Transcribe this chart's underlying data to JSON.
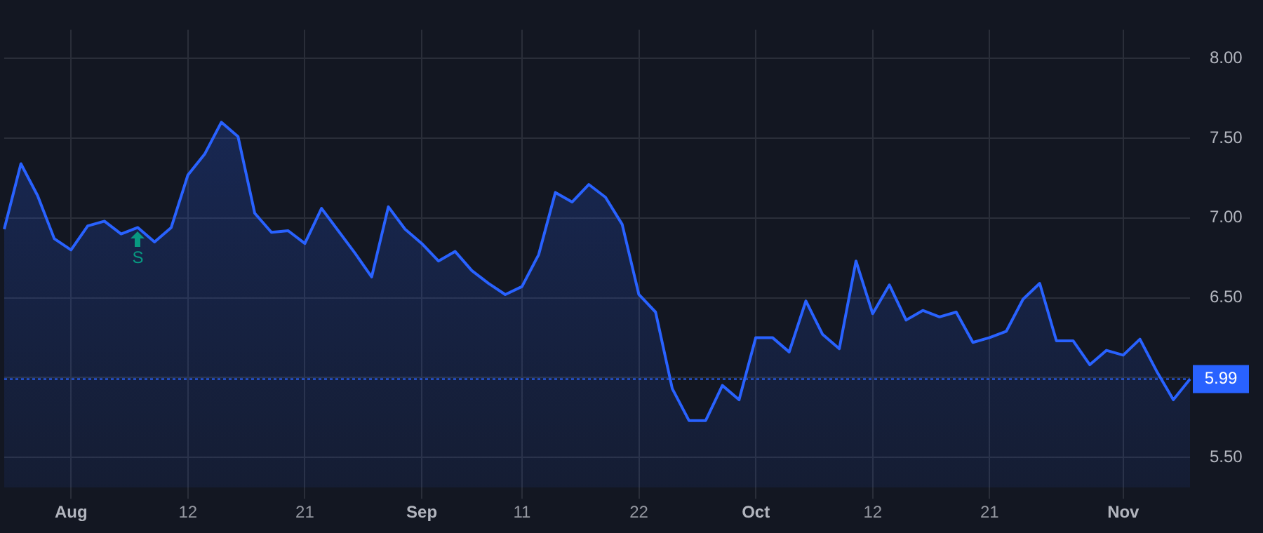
{
  "chart_data": {
    "type": "area",
    "categories": [
      null,
      null,
      null,
      null,
      "Aug",
      null,
      null,
      null,
      null,
      null,
      null,
      "12",
      null,
      null,
      null,
      null,
      null,
      null,
      "21",
      null,
      null,
      null,
      null,
      null,
      null,
      "Sep",
      null,
      null,
      null,
      null,
      null,
      "11",
      null,
      null,
      null,
      null,
      null,
      null,
      "22",
      null,
      null,
      null,
      null,
      null,
      null,
      "Oct",
      null,
      null,
      null,
      null,
      null,
      null,
      "12",
      null,
      null,
      null,
      null,
      null,
      null,
      "21",
      null,
      null,
      null,
      null,
      null,
      null,
      null,
      "Nov",
      null,
      null,
      null,
      null
    ],
    "series": [
      {
        "color": "#2962ff",
        "values": [
          6.93,
          7.34,
          7.14,
          6.87,
          6.8,
          6.95,
          6.98,
          6.9,
          6.94,
          6.85,
          6.94,
          7.27,
          7.4,
          7.6,
          7.51,
          7.03,
          6.91,
          6.92,
          6.84,
          7.06,
          6.92,
          6.78,
          6.63,
          7.07,
          6.93,
          6.84,
          6.73,
          6.79,
          6.67,
          6.59,
          6.52,
          6.57,
          6.77,
          7.16,
          7.1,
          7.21,
          7.13,
          6.96,
          6.52,
          6.41,
          5.93,
          5.73,
          5.73,
          5.95,
          5.86,
          6.25,
          6.25,
          6.16,
          6.48,
          6.27,
          6.18,
          6.73,
          6.4,
          6.58,
          6.36,
          6.42,
          6.38,
          6.41,
          6.22,
          6.25,
          6.29,
          6.49,
          6.59,
          6.23,
          6.23,
          6.08,
          6.17,
          6.14,
          6.24,
          6.04,
          5.86,
          5.99
        ]
      }
    ],
    "ylim": [
      5.31,
      8.18
    ],
    "yticks": [
      {
        "value": 5.5,
        "label": "5.50"
      },
      {
        "value": 6,
        "label": null
      },
      {
        "value": 6.5,
        "label": "6.50"
      },
      {
        "value": 7,
        "label": "7.00"
      },
      {
        "value": 7.5,
        "label": "7.50"
      },
      {
        "value": 8,
        "label": "8.00"
      }
    ],
    "ref_lines": [
      {
        "axis": "y",
        "value": 5.99,
        "label": "5.99",
        "color": "#2962ff",
        "line_style": "dotted"
      }
    ],
    "annotations": [
      "S"
    ],
    "grid": true
  }
}
